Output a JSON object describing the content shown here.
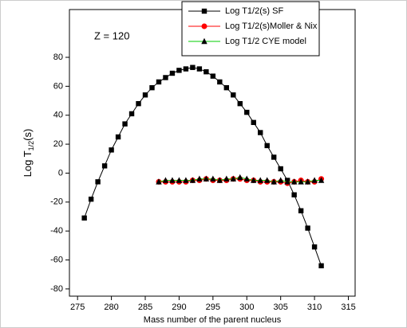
{
  "chart_data": {
    "type": "line",
    "annotation": "Z = 120",
    "x_label": "Mass number of the parent nucleus",
    "y_label": {
      "main": "Log T",
      "sub": "1/2",
      "tail": "(s)"
    },
    "xlim": [
      273.8,
      316
    ],
    "xticks": [
      275,
      280,
      285,
      290,
      295,
      300,
      305,
      310,
      315
    ],
    "ylim": [
      -85,
      113
    ],
    "yticks": [
      -80,
      -60,
      -40,
      -20,
      0,
      20,
      40,
      60,
      80
    ],
    "legend": "top-right",
    "series": [
      {
        "name": "Log T1/2(s) SF",
        "color": "#000000",
        "marker": "square",
        "marker_color": "#000000",
        "x": [
          276,
          277,
          278,
          279,
          280,
          281,
          282,
          283,
          284,
          285,
          286,
          287,
          288,
          289,
          290,
          291,
          292,
          293,
          294,
          295,
          296,
          297,
          298,
          299,
          300,
          301,
          302,
          303,
          304,
          305,
          306,
          307,
          308,
          309,
          310,
          311
        ],
        "values": [
          -31,
          -18,
          -6,
          5,
          16,
          25,
          34,
          41,
          48,
          54,
          59,
          63,
          66,
          69,
          71,
          72,
          73,
          72,
          70,
          67,
          63,
          59,
          54,
          48,
          42,
          35,
          28,
          19,
          11,
          3,
          -5,
          -15,
          -26,
          -38,
          -51,
          -64
        ]
      },
      {
        "name": "Log T1/2(s)Moller & Nix",
        "color": "#ff0000",
        "marker": "circle",
        "marker_color": "#ff0000",
        "x": [
          287,
          288,
          289,
          290,
          291,
          292,
          293,
          294,
          295,
          296,
          297,
          298,
          299,
          300,
          301,
          302,
          303,
          304,
          305,
          306,
          307,
          308,
          309,
          310,
          311
        ],
        "values": [
          -6,
          -6,
          -6,
          -6,
          -6,
          -5,
          -5,
          -4,
          -5,
          -5,
          -5,
          -4,
          -4,
          -5,
          -5,
          -6,
          -6,
          -6,
          -6,
          -7,
          -6,
          -5,
          -6,
          -6,
          -4
        ]
      },
      {
        "name": "Log T1/2 CYE model",
        "color": "#00cc00",
        "marker": "triangle",
        "marker_color": "#000000",
        "x": [
          287,
          288,
          289,
          290,
          291,
          292,
          293,
          294,
          295,
          296,
          297,
          298,
          299,
          300,
          301,
          302,
          303,
          304,
          305,
          306,
          307,
          308,
          309,
          310,
          311
        ],
        "values": [
          -6,
          -5,
          -5,
          -5,
          -5,
          -5,
          -4,
          -4,
          -4,
          -5,
          -4,
          -4,
          -3,
          -4,
          -5,
          -5,
          -5,
          -6,
          -5,
          -6,
          -6,
          -6,
          -6,
          -5,
          -5
        ]
      }
    ]
  }
}
